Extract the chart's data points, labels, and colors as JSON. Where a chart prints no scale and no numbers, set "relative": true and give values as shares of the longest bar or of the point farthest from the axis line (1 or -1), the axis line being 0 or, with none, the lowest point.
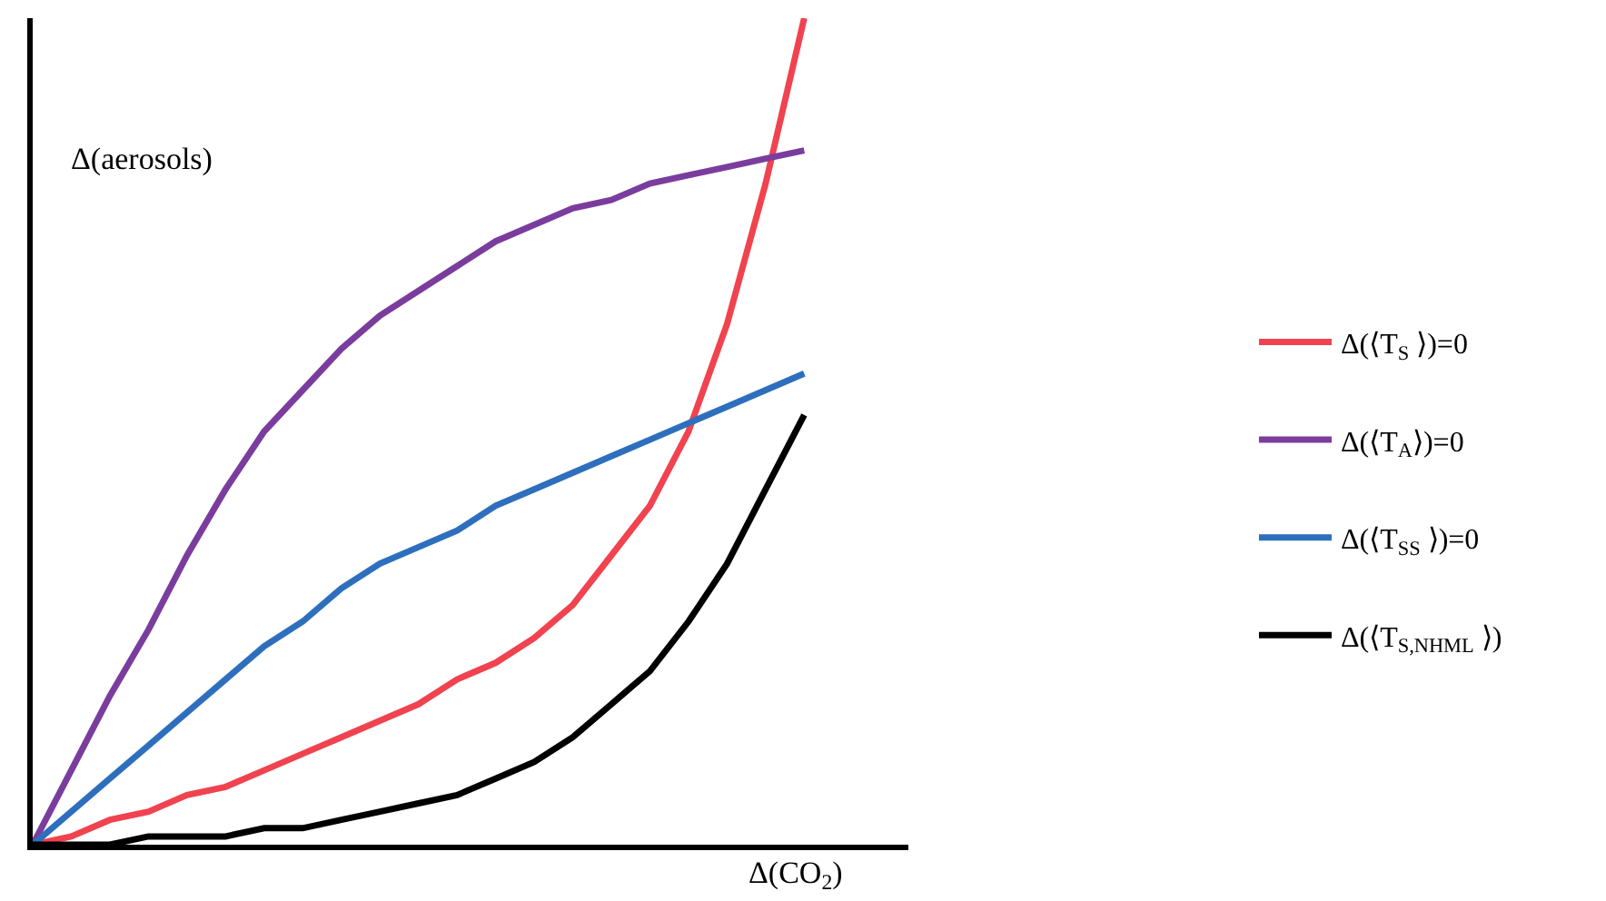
{
  "chart_data": {
    "type": "line",
    "relative": true,
    "xlabel": "Δ(CO$_{2}$)",
    "ylabel": "Δ(aerosols)",
    "categories": [
      null,
      null,
      null,
      null,
      null,
      null,
      null,
      null,
      null,
      null,
      null,
      null,
      null,
      null,
      null,
      null,
      null,
      null,
      null,
      null,
      null
    ],
    "legend": "right",
    "marker": "none",
    "line_style": "solid",
    "series": [
      {
        "name": "Δ(⟨T$_{S}$ ⟩)=0",
        "color": "#f0434f",
        "values": [
          0,
          0.01,
          0.03,
          0.04,
          0.06,
          0.07,
          0.09,
          0.11,
          0.13,
          0.15,
          0.17,
          0.2,
          0.22,
          0.25,
          0.29,
          0.35,
          0.41,
          0.5,
          0.63,
          0.8,
          1
        ]
      },
      {
        "name": "Δ(⟨T$_{A}$⟩)=0",
        "color": "#7a3d9e",
        "values": [
          0,
          0.09,
          0.18,
          0.26,
          0.35,
          0.43,
          0.5,
          0.55,
          0.6,
          0.64,
          0.67,
          0.7,
          0.73,
          0.75,
          0.77,
          0.78,
          0.8,
          0.81,
          0.82,
          0.83,
          0.84
        ]
      },
      {
        "name": "Δ(⟨T$_{SS}$ ⟩)=0",
        "color": "#2e6fbd",
        "values": [
          0,
          0.04,
          0.08,
          0.12,
          0.16,
          0.2,
          0.24,
          0.27,
          0.31,
          0.34,
          0.36,
          0.38,
          0.41,
          0.43,
          0.45,
          0.47,
          0.49,
          0.51,
          0.53,
          0.55,
          0.57
        ]
      },
      {
        "name": "Δ(⟨T$_{S,NHML}$ ⟩)",
        "color": "#000000",
        "values": [
          0,
          0,
          0,
          0.01,
          0.01,
          0.01,
          0.02,
          0.02,
          0.03,
          0.04,
          0.05,
          0.06,
          0.08,
          0.1,
          0.13,
          0.17,
          0.21,
          0.27,
          0.34,
          0.43,
          0.52
        ]
      }
    ]
  }
}
